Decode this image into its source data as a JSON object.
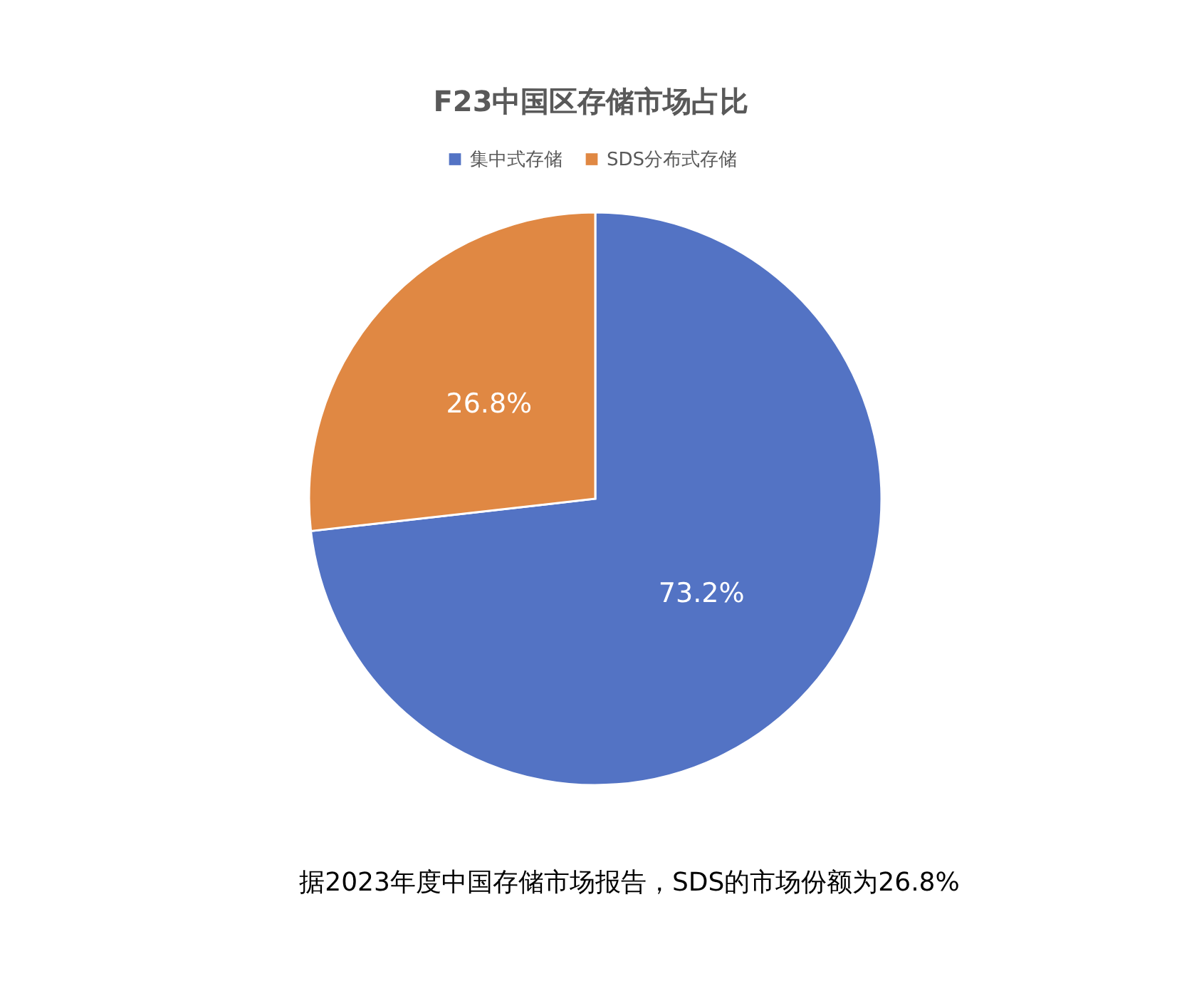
{
  "chart_data": {
    "type": "pie",
    "title": "F23中国区存储市场占比",
    "categories": [
      "集中式存储",
      "SDS分布式存储"
    ],
    "values": [
      73.2,
      26.8
    ],
    "colors": [
      "#5373C4",
      "#E08843"
    ],
    "value_labels": [
      "73.2%",
      "26.8%"
    ],
    "legend": "top",
    "annotations": [
      "据2023年度中国存储市场报告，SDS的市场份额为26.8%"
    ]
  }
}
